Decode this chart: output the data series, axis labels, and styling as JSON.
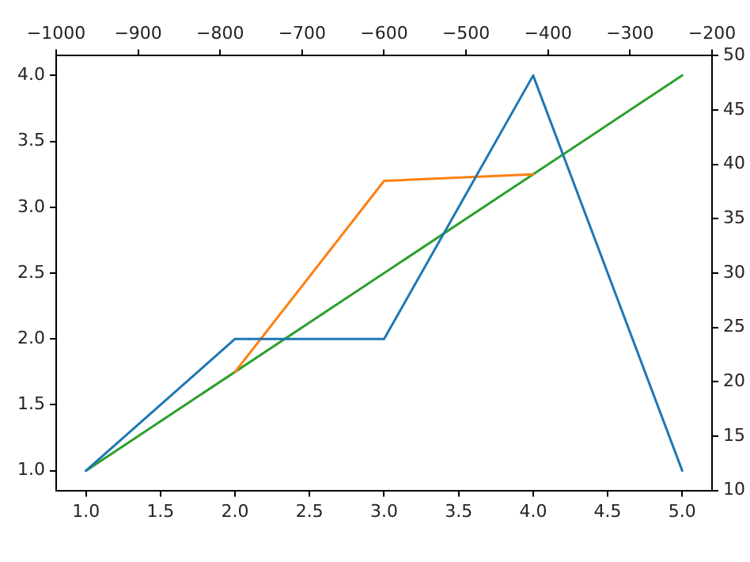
{
  "chart_data": {
    "type": "line",
    "x": [
      1,
      2,
      3,
      4,
      5
    ],
    "series": [
      {
        "color": "#1f77b4",
        "values": [
          1,
          2,
          2,
          4,
          1
        ]
      },
      {
        "color": "#ff7f0e",
        "values": [
          null,
          1.75,
          3.2,
          3.25,
          null
        ]
      },
      {
        "color": "#2ca02c",
        "values": [
          1,
          null,
          null,
          null,
          4
        ]
      }
    ],
    "xlim": [
      0.8,
      5.2
    ],
    "xticks": [
      {
        "value": 1,
        "label": "1.0"
      },
      {
        "value": 1.5,
        "label": "1.5"
      },
      {
        "value": 2,
        "label": "2.0"
      },
      {
        "value": 2.5,
        "label": "2.5"
      },
      {
        "value": 3,
        "label": "3.0"
      },
      {
        "value": 3.5,
        "label": "3.5"
      },
      {
        "value": 4,
        "label": "4.0"
      },
      {
        "value": 4.5,
        "label": "4.5"
      },
      {
        "value": 5,
        "label": "5.0"
      }
    ],
    "ylim": [
      0.85,
      4.15
    ],
    "yticks": [
      {
        "value": 1,
        "label": "1.0"
      },
      {
        "value": 1.5,
        "label": "1.5"
      },
      {
        "value": 2,
        "label": "2.0"
      },
      {
        "value": 2.5,
        "label": "2.5"
      },
      {
        "value": 3,
        "label": "3.0"
      },
      {
        "value": 3.5,
        "label": "3.5"
      },
      {
        "value": 4,
        "label": "4.0"
      }
    ],
    "x2lim": [
      -1000,
      -200
    ],
    "x2ticks": [
      {
        "value": -1000,
        "label": "−1000"
      },
      {
        "value": -900,
        "label": "−900"
      },
      {
        "value": -800,
        "label": "−800"
      },
      {
        "value": -700,
        "label": "−700"
      },
      {
        "value": -600,
        "label": "−600"
      },
      {
        "value": -500,
        "label": "−500"
      },
      {
        "value": -400,
        "label": "−400"
      },
      {
        "value": -300,
        "label": "−300"
      },
      {
        "value": -200,
        "label": "−200"
      }
    ],
    "y2lim": [
      10,
      50
    ],
    "y2ticks": [
      10,
      15,
      20,
      25,
      30,
      35,
      40,
      45,
      50
    ],
    "grid": false,
    "legend": false,
    "marker": "none",
    "line_style": "solid"
  }
}
